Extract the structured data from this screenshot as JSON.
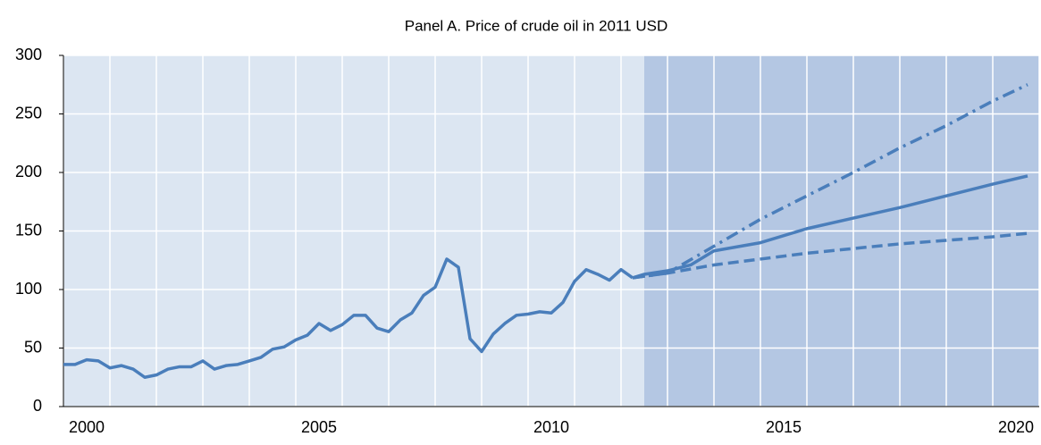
{
  "chart_data": {
    "type": "line",
    "title": "Panel A. Price of crude oil in 2011 USD",
    "xlim": [
      2000,
      2021
    ],
    "xgrid": [
      2000,
      2001,
      2002,
      2003,
      2004,
      2005,
      2006,
      2007,
      2008,
      2009,
      2010,
      2011,
      2012,
      2013,
      2014,
      2015,
      2016,
      2017,
      2018,
      2019,
      2020,
      2021
    ],
    "xticks": [
      {
        "value": 2000.5,
        "label": "2000"
      },
      {
        "value": 2005.5,
        "label": "2005"
      },
      {
        "value": 2010.5,
        "label": "2010"
      },
      {
        "value": 2015.5,
        "label": "2015"
      },
      {
        "value": 2020.5,
        "label": "2020"
      }
    ],
    "ylim": [
      0,
      300
    ],
    "yticks": [
      0,
      50,
      100,
      150,
      200,
      250,
      300
    ],
    "grid": true,
    "forecast_start": 2012.5,
    "background": "#dce6f2",
    "forecast_background": "#b4c7e3",
    "series": [
      {
        "color": "#4a7ebb",
        "style": "solid",
        "x": [
          2000,
          2000.25,
          2000.5,
          2000.75,
          2001,
          2001.25,
          2001.5,
          2001.75,
          2002,
          2002.25,
          2002.5,
          2002.75,
          2003,
          2003.25,
          2003.5,
          2003.75,
          2004,
          2004.25,
          2004.5,
          2004.75,
          2005,
          2005.25,
          2005.5,
          2005.75,
          2006,
          2006.25,
          2006.5,
          2006.75,
          2007,
          2007.25,
          2007.5,
          2007.75,
          2008,
          2008.25,
          2008.5,
          2008.75,
          2009,
          2009.25,
          2009.5,
          2009.75,
          2010,
          2010.25,
          2010.5,
          2010.75,
          2011,
          2011.25,
          2011.5,
          2011.75,
          2012,
          2012.25
        ],
        "values": [
          36,
          36,
          40,
          39,
          33,
          35,
          32,
          25,
          27,
          32,
          34,
          34,
          39,
          32,
          35,
          36,
          39,
          42,
          49,
          51,
          57,
          61,
          71,
          65,
          70,
          78,
          78,
          67,
          64,
          74,
          80,
          95,
          102,
          126,
          119,
          58,
          47,
          62,
          71,
          78,
          79,
          81,
          80,
          89,
          107,
          117,
          113,
          108,
          117,
          110
        ]
      },
      {
        "color": "#4a7ebb",
        "style": "solid",
        "x": [
          2012.25,
          2012.5,
          2013,
          2013.5,
          2014,
          2015,
          2016,
          2017,
          2018,
          2019,
          2020,
          2020.75
        ],
        "values": [
          110,
          113,
          116,
          121,
          133,
          140,
          152,
          161,
          170,
          180,
          190,
          197
        ]
      },
      {
        "color": "#4a7ebb",
        "style": "dashed",
        "x": [
          2012.25,
          2013,
          2014,
          2015,
          2016,
          2017,
          2018,
          2019,
          2020,
          2020.75
        ],
        "values": [
          110,
          114,
          121,
          126,
          131,
          135,
          139,
          142,
          145,
          148
        ]
      },
      {
        "color": "#4a7ebb",
        "style": "dashdot",
        "x": [
          2012.25,
          2013,
          2014,
          2015,
          2016,
          2017,
          2018,
          2019,
          2020,
          2020.75
        ],
        "values": [
          110,
          114,
          137,
          160,
          180,
          200,
          221,
          240,
          261,
          275
        ]
      }
    ]
  }
}
